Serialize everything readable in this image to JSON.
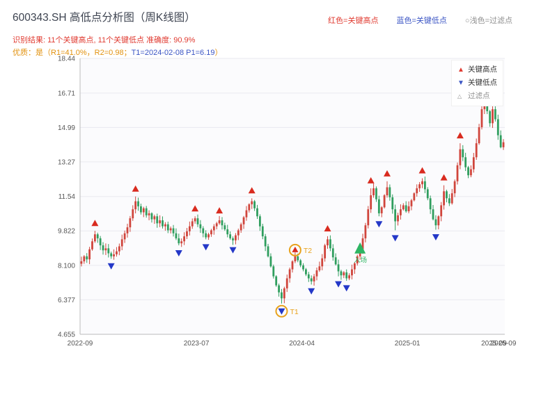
{
  "header": {
    "title": "600343.SH 高低点分析图（周K线图）",
    "legend": [
      "红色=关键高点",
      "蓝色=关键低点",
      "○浅色=过滤点"
    ],
    "result_line": "识别结果: 11个关键高点, 11个关键低点  准确度: 90.9%",
    "quality": [
      "优质：是（R1=41.0%，R2=0.98；",
      "T1=2024-02-08 P1=6.19",
      "）"
    ]
  },
  "chart_legend": [
    "关键高点",
    "关键低点",
    "过滤点"
  ],
  "chart_data": {
    "type": "candlestick",
    "title": "600343.SH 高低点分析图（周K线图）",
    "frequency": "weekly",
    "ylim": [
      4.655,
      18.44
    ],
    "y_ticks": [
      "18.44",
      "16.71",
      "14.99",
      "13.27",
      "11.54",
      "9.822",
      "8.100",
      "6.377",
      "4.655"
    ],
    "x_ticks": [
      {
        "label": "2022-09",
        "week": 0
      },
      {
        "label": "2023-07",
        "week": 43
      },
      {
        "label": "2024-04",
        "week": 82
      },
      {
        "label": "2025-01",
        "week": 121
      },
      {
        "label": "2025-09",
        "week": 153
      },
      {
        "label": "2025-09",
        "week": 156.5
      }
    ],
    "closes": [
      8.3,
      8.55,
      8.4,
      8.9,
      9.3,
      9.65,
      9.45,
      9.1,
      8.85,
      8.95,
      8.7,
      8.55,
      8.65,
      8.8,
      9.05,
      9.4,
      9.7,
      10.0,
      10.45,
      10.9,
      11.3,
      11.05,
      10.75,
      10.95,
      10.6,
      10.7,
      10.4,
      10.55,
      10.2,
      10.35,
      10.05,
      10.15,
      9.85,
      9.95,
      9.7,
      9.45,
      9.2,
      9.3,
      9.55,
      9.8,
      10.05,
      10.3,
      10.45,
      10.15,
      9.95,
      9.7,
      9.5,
      9.65,
      9.85,
      10.05,
      10.2,
      10.35,
      10.1,
      9.9,
      9.65,
      9.45,
      9.35,
      9.6,
      9.85,
      10.15,
      10.5,
      10.85,
      11.15,
      11.3,
      10.95,
      10.55,
      10.05,
      9.55,
      9.05,
      8.55,
      8.05,
      7.55,
      7.1,
      6.75,
      6.45,
      6.95,
      7.45,
      7.9,
      8.3,
      8.55,
      8.35,
      8.1,
      7.9,
      7.65,
      7.45,
      7.3,
      7.55,
      7.85,
      8.05,
      8.45,
      9.1,
      9.4,
      8.95,
      8.5,
      8.15,
      7.8,
      7.6,
      7.75,
      7.45,
      7.6,
      7.9,
      8.2,
      8.55,
      8.9,
      9.45,
      10.1,
      10.9,
      11.6,
      11.95,
      11.4,
      10.7,
      11.0,
      11.6,
      12.0,
      11.5,
      10.9,
      10.3,
      10.6,
      10.9,
      11.1,
      10.8,
      11.05,
      11.35,
      11.7,
      11.95,
      12.15,
      12.3,
      11.9,
      11.45,
      10.9,
      10.4,
      10.1,
      10.55,
      11.1,
      11.8,
      11.45,
      11.2,
      11.7,
      12.3,
      13.1,
      13.9,
      13.5,
      13.0,
      12.6,
      12.9,
      13.5,
      14.2,
      15.0,
      15.9,
      16.5,
      15.8,
      15.2,
      15.9,
      15.4,
      14.6,
      14.0,
      14.25
    ],
    "key_highs": {
      "5": 9.82,
      "20": 11.54,
      "42": 10.55,
      "51": 10.45,
      "63": 11.45,
      "91": 9.55,
      "107": 11.95,
      "113": 12.3,
      "126": 12.45,
      "134": 12.1,
      "140": 14.2
    },
    "key_lows": {
      "11": 8.45,
      "36": 9.1,
      "46": 9.4,
      "56": 9.25,
      "74": 6.19,
      "85": 7.2,
      "95": 7.55,
      "98": 7.35,
      "110": 10.55,
      "116": 9.85,
      "131": 9.9
    },
    "filtered": {
      "149": 16.71
    },
    "entry": {
      "index": 103,
      "price": 8.9,
      "label": "入场"
    },
    "t1": {
      "index": 74,
      "price": 6.19,
      "label": "T1"
    },
    "t2": {
      "index": 79,
      "price": 8.55,
      "label": "T2"
    },
    "key_high_count": 11,
    "key_low_count": 11,
    "accuracy": "90.9%",
    "colors": {
      "up": "#d0453c",
      "down": "#2f9e5e",
      "marker_high": "#d92b1f",
      "marker_low": "#2438c8",
      "marker_filtered": "#9a9a9a",
      "entry": "#2db563",
      "t_circle": "#e8a21c",
      "grid": "#e9e9f0",
      "plot_bg": "#fbfbfd",
      "axis": "#bbbbbb",
      "tick_text": "#555555"
    },
    "legend_position": "upper-right",
    "grid": true
  }
}
